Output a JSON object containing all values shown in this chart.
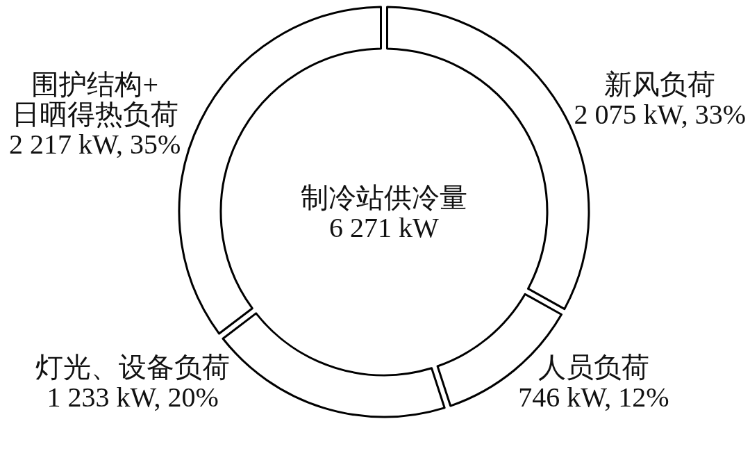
{
  "chart_data": {
    "type": "donut",
    "categories": [
      "新风负荷",
      "人员负荷",
      "灯光、设备负荷",
      "围护结构+\n日晒得热负荷"
    ],
    "values": [
      2075,
      746,
      1233,
      2217
    ],
    "value_labels": [
      "2 075 kW, 33%",
      "746 kW, 12%",
      "1 233 kW, 20%",
      "2 217 kW, 35%"
    ],
    "colors": [
      "#ffffff",
      "#ffffff",
      "#ffffff",
      "#ffffff"
    ],
    "annotations": [
      "制冷站供冷量",
      "6 271 kW"
    ]
  }
}
